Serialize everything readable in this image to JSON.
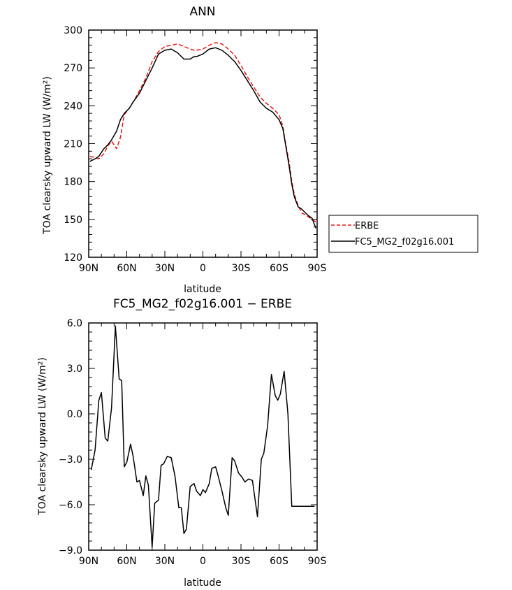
{
  "chart_data": [
    {
      "type": "line",
      "title": "ANN",
      "xlabel": "latitude",
      "ylabel": "TOA clearsky upward LW (W/m²)",
      "xlim": [
        90,
        -90
      ],
      "ylim": [
        120,
        300
      ],
      "xticks": [
        90,
        60,
        30,
        0,
        -30,
        -60,
        -90
      ],
      "xtick_labels": [
        "90N",
        "60N",
        "30N",
        "0",
        "30S",
        "60S",
        "90S"
      ],
      "yticks": [
        120,
        150,
        180,
        210,
        240,
        270,
        300
      ],
      "ytick_labels": [
        "120",
        "150",
        "180",
        "210",
        "240",
        "270",
        "300"
      ],
      "legend_position": "right",
      "series": [
        {
          "name": "ERBE",
          "color": "#e41a1c",
          "dash": "dashed",
          "x": [
            89,
            85,
            82,
            78,
            75,
            72,
            68,
            65,
            62,
            58,
            55,
            50,
            45,
            40,
            35,
            30,
            25,
            20,
            15,
            10,
            7,
            5,
            0,
            -5,
            -10,
            -15,
            -20,
            -25,
            -30,
            -35,
            -40,
            -45,
            -50,
            -55,
            -60,
            -63,
            -65,
            -68,
            -70,
            -72,
            -75,
            -78,
            -80,
            -83,
            -86,
            -89
          ],
          "values": [
            200,
            199,
            198,
            202,
            208,
            212,
            206,
            215,
            233,
            238,
            243,
            252,
            262,
            275,
            283,
            287,
            288,
            289,
            287,
            285,
            284,
            284,
            285,
            288,
            290,
            289,
            285,
            280,
            272,
            263,
            255,
            247,
            242,
            238,
            233,
            224,
            211,
            195,
            180,
            170,
            161,
            155,
            154,
            152,
            150,
            148
          ]
        },
        {
          "name": "FC5_MG2_f02g16.001",
          "color": "#000000",
          "dash": "solid",
          "x": [
            89,
            85,
            82,
            78,
            75,
            72,
            68,
            65,
            62,
            58,
            55,
            50,
            45,
            40,
            35,
            30,
            25,
            20,
            15,
            10,
            7,
            5,
            0,
            -5,
            -10,
            -15,
            -20,
            -25,
            -30,
            -35,
            -40,
            -45,
            -50,
            -55,
            -60,
            -63,
            -65,
            -68,
            -70,
            -72,
            -75,
            -78,
            -80,
            -83,
            -86,
            -89
          ],
          "values": [
            196,
            198,
            200,
            206,
            209,
            213,
            220,
            229,
            234,
            238,
            243,
            250,
            260,
            270,
            281,
            284,
            285,
            282,
            277,
            277,
            279,
            279,
            281,
            285,
            286,
            284,
            280,
            275,
            268,
            260,
            252,
            243,
            238,
            235,
            229,
            222,
            210,
            192,
            178,
            168,
            160,
            158,
            156,
            153,
            151,
            143
          ]
        }
      ]
    },
    {
      "type": "line",
      "title": "FC5_MG2_f02g16.001 − ERBE",
      "xlabel": "latitude",
      "ylabel": "TOA clearsky upward LW (W/m²)",
      "xlim": [
        90,
        -90
      ],
      "ylim": [
        -9,
        6
      ],
      "xticks": [
        90,
        60,
        30,
        0,
        -30,
        -60,
        -90
      ],
      "xtick_labels": [
        "90N",
        "60N",
        "30N",
        "0",
        "30S",
        "60S",
        "90S"
      ],
      "yticks": [
        -9,
        -6,
        -3,
        0,
        3,
        6
      ],
      "ytick_labels": [
        "−9.0",
        "−6.0",
        "−3.0",
        "0.0",
        "3.0",
        "6.0"
      ],
      "series": [
        {
          "color": "#000000",
          "dash": "solid",
          "x": [
            88,
            85,
            82,
            80,
            77,
            75,
            72,
            69,
            66,
            64,
            62,
            60,
            57,
            55,
            52,
            50,
            47,
            45,
            43,
            40,
            38,
            35,
            33,
            31,
            28,
            25,
            22,
            19,
            17,
            15,
            13,
            10,
            7,
            5,
            2,
            0,
            -2,
            -5,
            -7,
            -10,
            -12,
            -15,
            -18,
            -20,
            -23,
            -25,
            -28,
            -31,
            -33,
            -36,
            -39,
            -41,
            -43,
            -46,
            -48,
            -51,
            -54,
            -57,
            -59,
            -61,
            -64,
            -67,
            -70,
            -72,
            -74,
            -77,
            -79,
            -82,
            -84,
            -86,
            -88
          ],
          "values": [
            -3.7,
            -2.4,
            0.9,
            1.4,
            -1.6,
            -1.8,
            0.4,
            5.8,
            2.3,
            2.2,
            -3.5,
            -3.2,
            -2.0,
            -2.8,
            -4.5,
            -4.4,
            -5.4,
            -4.1,
            -4.7,
            -8.8,
            -5.9,
            -5.7,
            -3.4,
            -3.3,
            -2.8,
            -2.9,
            -4.1,
            -6.2,
            -6.2,
            -7.9,
            -7.6,
            -4.8,
            -4.6,
            -5.1,
            -5.4,
            -5.0,
            -5.2,
            -4.6,
            -3.6,
            -3.5,
            -4.1,
            -5.1,
            -6.2,
            -6.7,
            -2.9,
            -3.1,
            -3.9,
            -4.2,
            -4.5,
            -4.3,
            -4.4,
            -5.6,
            -6.8,
            -3.0,
            -2.6,
            -0.8,
            2.6,
            1.2,
            0.9,
            1.3,
            2.8,
            0.0,
            -6.1,
            -6.1,
            -6.1,
            -6.1,
            -6.1,
            -6.1,
            -6.1,
            -6.1,
            -6.1
          ]
        }
      ]
    }
  ]
}
